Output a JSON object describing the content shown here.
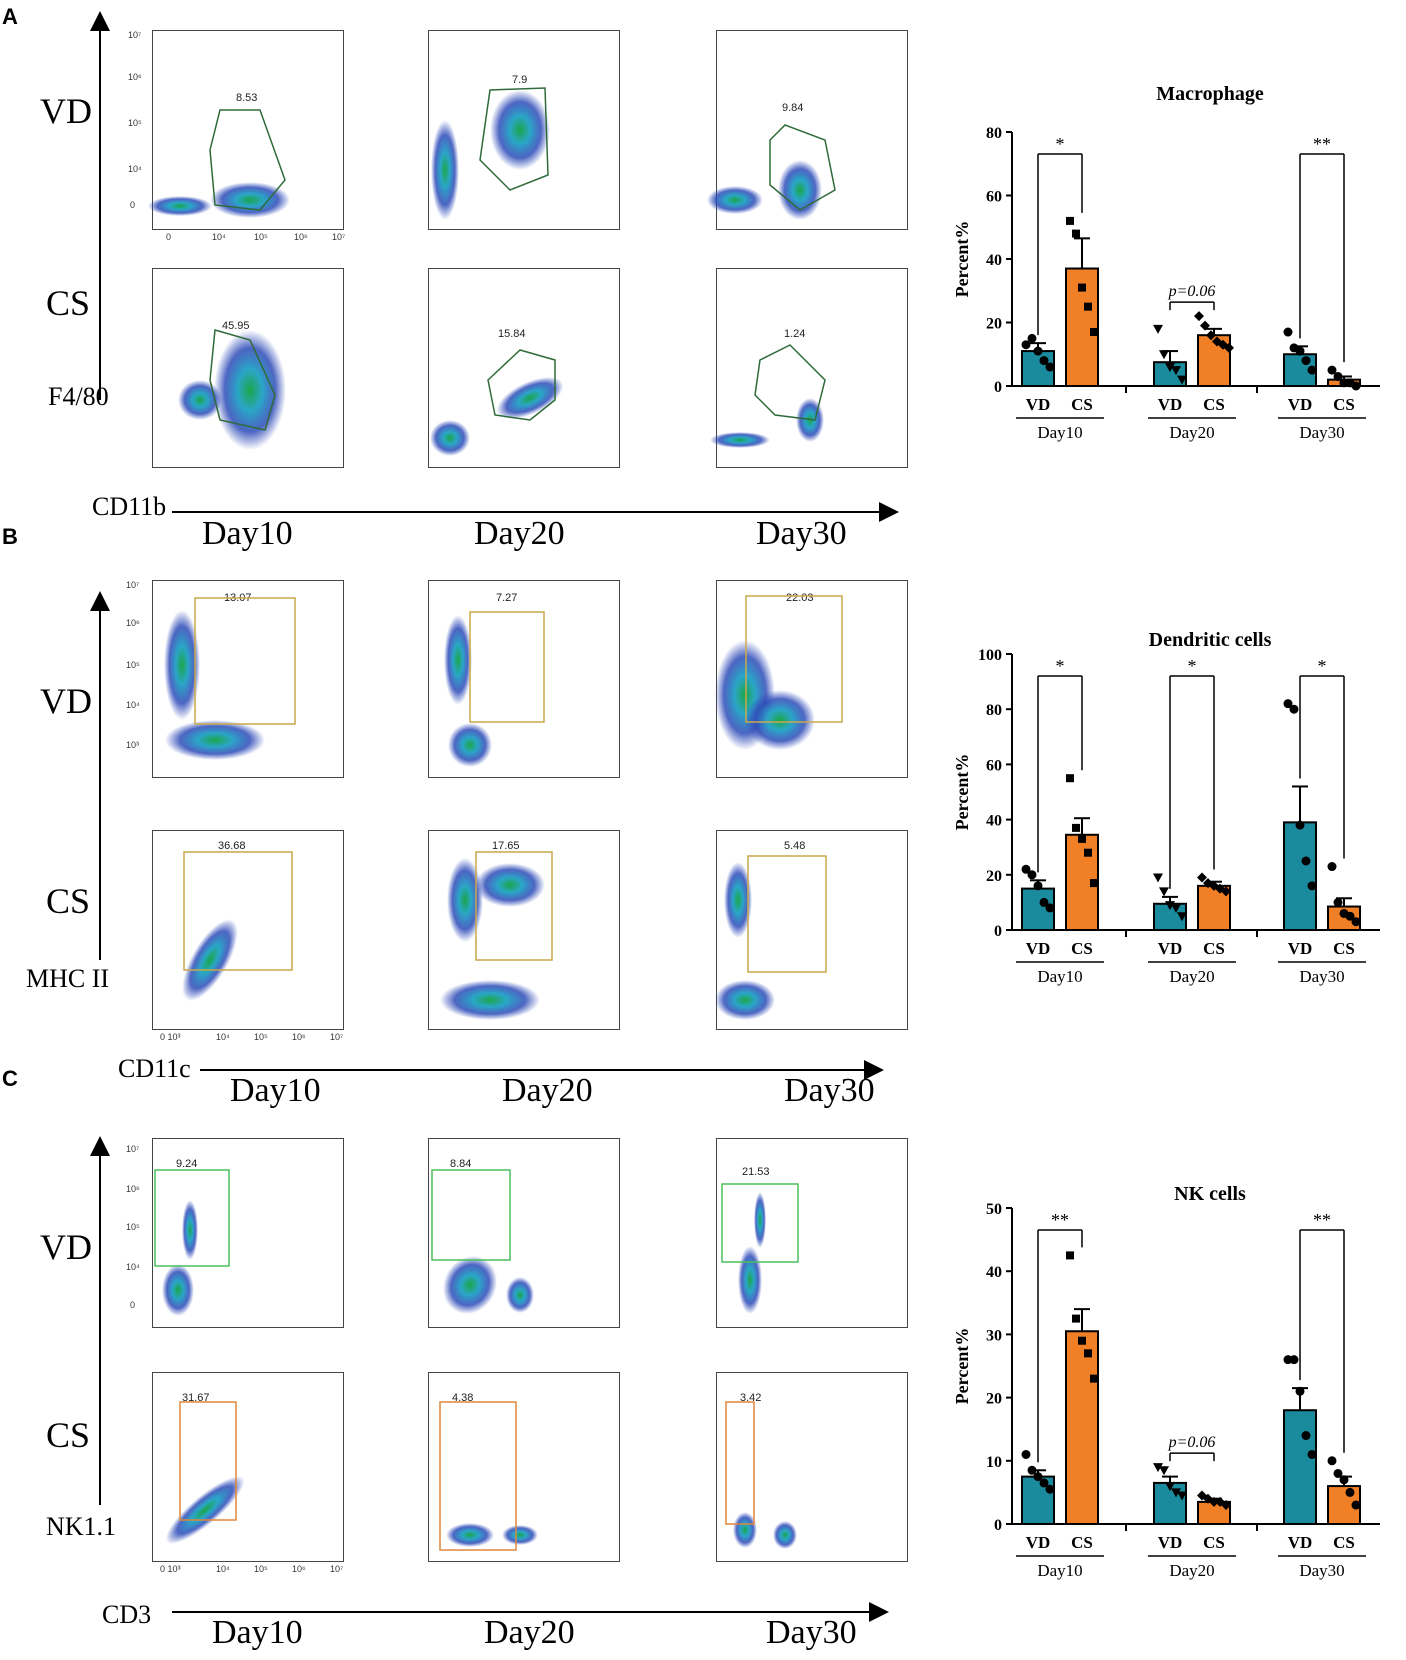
{
  "panels": [
    {
      "letter": "A",
      "row_labels": [
        "VD",
        "CS"
      ],
      "y_marker": "F4/80",
      "x_marker": "CD11b",
      "days": [
        "Day10",
        "Day20",
        "Day30"
      ],
      "gates": [
        "8.53",
        "7.9",
        "9.84",
        "45.95",
        "15.84",
        "1.24"
      ],
      "x_ticks": [
        "0",
        "10⁴",
        "10⁵",
        "10⁶",
        "10⁷"
      ],
      "y_ticks": [
        "0",
        "10⁴",
        "10⁵",
        "10⁶",
        "10⁷"
      ]
    },
    {
      "letter": "B",
      "row_labels": [
        "VD",
        "CS"
      ],
      "y_marker": "MHC II",
      "x_marker": "CD11c",
      "days": [
        "Day10",
        "Day20",
        "Day30"
      ],
      "gates": [
        "13.07",
        "7.27",
        "22.03",
        "36.68",
        "17.65",
        "5.48"
      ],
      "x_ticks": [
        "0 10³",
        "10⁴",
        "10⁵",
        "10⁶",
        "10⁷"
      ],
      "y_ticks": [
        "10³",
        "10⁴",
        "10⁵",
        "10⁶",
        "10⁷"
      ]
    },
    {
      "letter": "C",
      "row_labels": [
        "VD",
        "CS"
      ],
      "y_marker": "NK1.1",
      "x_marker": "CD3",
      "days": [
        "Day10",
        "Day20",
        "Day30"
      ],
      "gates": [
        "9.24",
        "8.84",
        "21.53",
        "31.67",
        "4.38",
        "3.42"
      ],
      "x_ticks": [
        "0 10³",
        "10⁴",
        "10⁵",
        "10⁶",
        "10⁷"
      ],
      "y_ticks": [
        "0",
        "10⁴",
        "10⁵",
        "10⁶",
        "10⁷"
      ]
    }
  ],
  "chart_data": [
    {
      "type": "bar",
      "title": "Macrophage",
      "ylabel": "Percent%",
      "ylim": [
        0,
        80
      ],
      "yticks": [
        "0",
        "20",
        "40",
        "60",
        "80"
      ],
      "groups": [
        "Day10",
        "Day20",
        "Day30"
      ],
      "bar_labels": [
        "VD",
        "CS"
      ],
      "series": [
        {
          "name": "VD",
          "values": [
            11,
            7.5,
            10
          ],
          "errors": [
            2.5,
            3.5,
            2.5
          ]
        },
        {
          "name": "CS",
          "values": [
            37,
            16,
            2
          ],
          "errors": [
            9.5,
            2,
            1
          ]
        }
      ],
      "points": [
        [
          [
            13,
            15,
            11,
            8,
            6
          ],
          [
            52,
            48,
            31,
            25,
            17
          ]
        ],
        [
          [
            18,
            10,
            6,
            5,
            2
          ],
          [
            22,
            19,
            16,
            14,
            13,
            12
          ]
        ],
        [
          [
            17,
            12,
            11,
            8,
            5
          ],
          [
            5,
            3,
            1,
            1,
            0
          ]
        ]
      ],
      "significance": [
        "*",
        "p=0.06",
        "**"
      ],
      "colors": {
        "VD": "#1a8b9d",
        "CS": "#f07f26"
      }
    },
    {
      "type": "bar",
      "title": "Dendritic cells",
      "ylabel": "Percent%",
      "ylim": [
        0,
        100
      ],
      "yticks": [
        "0",
        "20",
        "40",
        "60",
        "80",
        "100"
      ],
      "groups": [
        "Day10",
        "Day20",
        "Day30"
      ],
      "bar_labels": [
        "VD",
        "CS"
      ],
      "series": [
        {
          "name": "VD",
          "values": [
            15,
            9.5,
            39
          ],
          "errors": [
            3,
            2.5,
            13
          ]
        },
        {
          "name": "CS",
          "values": [
            34.5,
            16,
            8.5
          ],
          "errors": [
            6,
            1.5,
            3
          ]
        }
      ],
      "points": [
        [
          [
            22,
            20,
            16,
            10,
            8
          ],
          [
            55,
            37,
            33,
            28,
            17
          ]
        ],
        [
          [
            19,
            14,
            9,
            8,
            5
          ],
          [
            19,
            17,
            16,
            15,
            14
          ]
        ],
        [
          [
            82,
            80,
            38,
            25,
            16
          ],
          [
            23,
            10,
            6,
            5,
            3
          ]
        ]
      ],
      "significance": [
        "*",
        "*",
        "*"
      ],
      "colors": {
        "VD": "#1a8b9d",
        "CS": "#f07f26"
      }
    },
    {
      "type": "bar",
      "title": "NK cells",
      "ylabel": "Percent%",
      "ylim": [
        0,
        50
      ],
      "yticks": [
        "0",
        "10",
        "20",
        "30",
        "40",
        "50"
      ],
      "groups": [
        "Day10",
        "Day20",
        "Day30"
      ],
      "bar_labels": [
        "VD",
        "CS"
      ],
      "series": [
        {
          "name": "VD",
          "values": [
            7.5,
            6.5,
            18
          ],
          "errors": [
            1,
            1,
            3.5
          ]
        },
        {
          "name": "CS",
          "values": [
            30.5,
            3.5,
            6
          ],
          "errors": [
            3.5,
            0.5,
            1.5
          ]
        }
      ],
      "points": [
        [
          [
            11,
            8.5,
            7.5,
            6.5,
            5.5
          ],
          [
            42.5,
            32.5,
            29,
            27,
            23
          ]
        ],
        [
          [
            9,
            8.5,
            6,
            5,
            4.5
          ],
          [
            4.5,
            4,
            3.5,
            3.5,
            3
          ]
        ],
        [
          [
            26,
            26,
            21,
            14,
            11
          ],
          [
            10,
            8,
            7,
            5,
            3
          ]
        ]
      ],
      "significance": [
        "**",
        "p=0.06",
        "**"
      ],
      "colors": {
        "VD": "#1a8b9d",
        "CS": "#f07f26"
      }
    }
  ]
}
